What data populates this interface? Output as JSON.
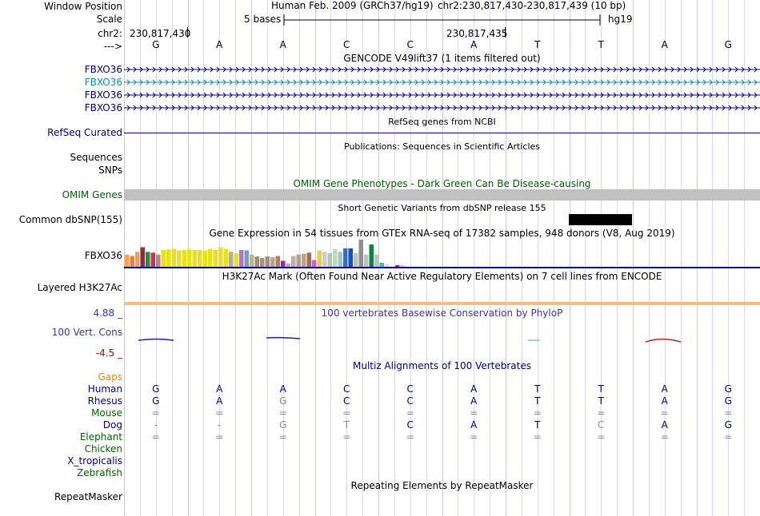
{
  "colors": {
    "navy": "#000080",
    "teal": "#0090b0",
    "green": "#006400",
    "gaps": "#e09000",
    "grid": "#c8c8f0",
    "left_border": "#e8a0a0"
  },
  "ruler": {
    "window_position_label": "Window Position",
    "scale_label": "Scale",
    "chr_label": "chr2:",
    "strand_label": "--->",
    "assembly": "Human Feb. 2009 (GRCh37/hg19)",
    "position": "chr2:230,817,430-230,817,439 (10 bp)",
    "scale_text": "5 bases",
    "db": "hg19",
    "coord1": "230,817,430",
    "coord2": "230,817,435"
  },
  "bases": [
    "G",
    "A",
    "A",
    "C",
    "C",
    "A",
    "T",
    "T",
    "A",
    "G"
  ],
  "gencode": {
    "title": "GENCODE V49lift37 (1 items filtered out)",
    "tracks": [
      {
        "label": "FBXO36",
        "style": "navy"
      },
      {
        "label": "FBXO36",
        "style": "teal"
      },
      {
        "label": "FBXO36",
        "style": "navy"
      },
      {
        "label": "FBXO36",
        "style": "navy"
      }
    ]
  },
  "refseq": {
    "title": "RefSeq genes from NCBI",
    "label": "RefSeq Curated"
  },
  "publications": {
    "title": "Publications: Sequences in Scientific Articles",
    "label_sequences": "Sequences",
    "label_snps": "SNPs"
  },
  "omim": {
    "title": "OMIM Gene Phenotypes - Dark Green Can Be Disease-causing",
    "label": "OMIM Genes"
  },
  "dbsnp": {
    "title": "Short Genetic Variants from dbSNP release 155",
    "label": "Common dbSNP(155)"
  },
  "gtex": {
    "title": "Gene Expression in 54 tissues from GTEx RNA-seq of 17382 samples, 948 donors (V8, Aug 2019)",
    "label": "FBXO36",
    "bars": [
      {
        "c": "#f7a35c",
        "v": 0.45
      },
      {
        "c": "#f08030",
        "v": 0.4
      },
      {
        "c": "#e8a060",
        "v": 0.55
      },
      {
        "c": "#8b2a4a",
        "v": 0.72
      },
      {
        "c": "#338833",
        "v": 0.55
      },
      {
        "c": "#cc3355",
        "v": 0.52
      },
      {
        "c": "#c08080",
        "v": 0.45
      },
      {
        "c": "#e8e020",
        "v": 0.62
      },
      {
        "c": "#e8e020",
        "v": 0.64
      },
      {
        "c": "#e8e020",
        "v": 0.66
      },
      {
        "c": "#e8e020",
        "v": 0.6
      },
      {
        "c": "#e8e020",
        "v": 0.62
      },
      {
        "c": "#e8e020",
        "v": 0.64
      },
      {
        "c": "#e8e020",
        "v": 0.62
      },
      {
        "c": "#e8e020",
        "v": 0.62
      },
      {
        "c": "#e8e020",
        "v": 0.6
      },
      {
        "c": "#e8e020",
        "v": 0.66
      },
      {
        "c": "#e8e020",
        "v": 0.62
      },
      {
        "c": "#e8e020",
        "v": 0.72
      },
      {
        "c": "#e8e020",
        "v": 0.66
      },
      {
        "c": "#b0b0a0",
        "v": 0.55
      },
      {
        "c": "#e8e020",
        "v": 0.5
      },
      {
        "c": "#c070c0",
        "v": 0.62
      },
      {
        "c": "#70a0c0",
        "v": 0.6
      },
      {
        "c": "#c0b090",
        "v": 0.45
      },
      {
        "c": "#a09070",
        "v": 0.38
      },
      {
        "c": "#b09070",
        "v": 0.32
      },
      {
        "c": "#a09080",
        "v": 0.38
      },
      {
        "c": "#c0a080",
        "v": 0.35
      },
      {
        "c": "#b08060",
        "v": 0.4
      },
      {
        "c": "#9030a0",
        "v": 0.22
      },
      {
        "c": "#d0a0c0",
        "v": 0.12
      },
      {
        "c": "#c0b0a0",
        "v": 0.4
      },
      {
        "c": "#b0a090",
        "v": 0.45
      },
      {
        "c": "#c0a080",
        "v": 0.48
      },
      {
        "c": "#a07050",
        "v": 0.52
      },
      {
        "c": "#d060d0",
        "v": 0.25
      },
      {
        "c": "#e8d040",
        "v": 0.6
      },
      {
        "c": "#d0d0c0",
        "v": 0.55
      },
      {
        "c": "#c0c0c0",
        "v": 0.5
      },
      {
        "c": "#b0e0b0",
        "v": 0.65
      },
      {
        "c": "#a0c0e0",
        "v": 0.55
      },
      {
        "c": "#3070d0",
        "v": 0.68
      },
      {
        "c": "#2050b0",
        "v": 0.68
      },
      {
        "c": "#c0c0c0",
        "v": 0.5
      },
      {
        "c": "#909090",
        "v": 1.0
      },
      {
        "c": "#c0c0c0",
        "v": 0.45
      },
      {
        "c": "#108040",
        "v": 0.82
      },
      {
        "c": "#c0c0c0",
        "v": 0.45
      },
      {
        "c": "#30c0c0",
        "v": 0.15
      },
      {
        "c": "#e0e0e0",
        "v": 0.1
      },
      {
        "c": "#f0f0f0",
        "v": 0.08
      },
      {
        "c": "#a020a0",
        "v": 0.06
      },
      {
        "c": "#e0c0e0",
        "v": 0.05
      }
    ]
  },
  "h3k27ac": {
    "title": "H3K27Ac Mark (Often Found Near Active Regulatory Elements) on 7 cell lines from ENCODE",
    "label": "Layered H3K27Ac"
  },
  "phylop": {
    "title": "100 vertebrates Basewise Conservation by PhyloP",
    "label": "100 Vert. Cons",
    "max": "4.88 _",
    "min": "-4.5 _"
  },
  "multiz": {
    "title": "Multiz Alignments of 100 Vertebrates",
    "gaps_label": "Gaps",
    "species": [
      {
        "name": "Human",
        "color": "#000080",
        "seq": [
          "G",
          "A",
          "A",
          "C",
          "C",
          "A",
          "T",
          "T",
          "A",
          "G"
        ],
        "dim": []
      },
      {
        "name": "Rhesus",
        "color": "#000080",
        "seq": [
          "G",
          "A",
          "G",
          "C",
          "C",
          "A",
          "T",
          "T",
          "A",
          "G"
        ],
        "dim": [
          2
        ]
      },
      {
        "name": "Mouse",
        "color": "#006400",
        "seq": [
          "=",
          "=",
          "=",
          "=",
          "=",
          "=",
          "=",
          "=",
          "=",
          "="
        ],
        "dim": [
          0,
          1,
          2,
          3,
          4,
          5,
          6,
          7,
          8,
          9
        ]
      },
      {
        "name": "Dog",
        "color": "#000080",
        "seq": [
          "-",
          "-",
          "G",
          "T",
          "C",
          "A",
          "T",
          "C",
          "A",
          "G"
        ],
        "dim": [
          0,
          1,
          2,
          3,
          7
        ]
      },
      {
        "name": "Elephant",
        "color": "#006400",
        "seq": [
          "=",
          "=",
          "=",
          "=",
          "=",
          "=",
          "=",
          "=",
          "=",
          "="
        ],
        "dim": [
          0,
          1,
          2,
          3,
          4,
          5,
          6,
          7,
          8,
          9
        ]
      },
      {
        "name": "Chicken",
        "color": "#006400",
        "seq": [],
        "dim": []
      },
      {
        "name": "X_tropicalis",
        "color": "#000080",
        "seq": [],
        "dim": []
      },
      {
        "name": "Zebrafish",
        "color": "#006400",
        "seq": [],
        "dim": []
      }
    ]
  },
  "repeatmasker": {
    "title": "Repeating Elements by RepeatMasker",
    "label": "RepeatMasker"
  }
}
